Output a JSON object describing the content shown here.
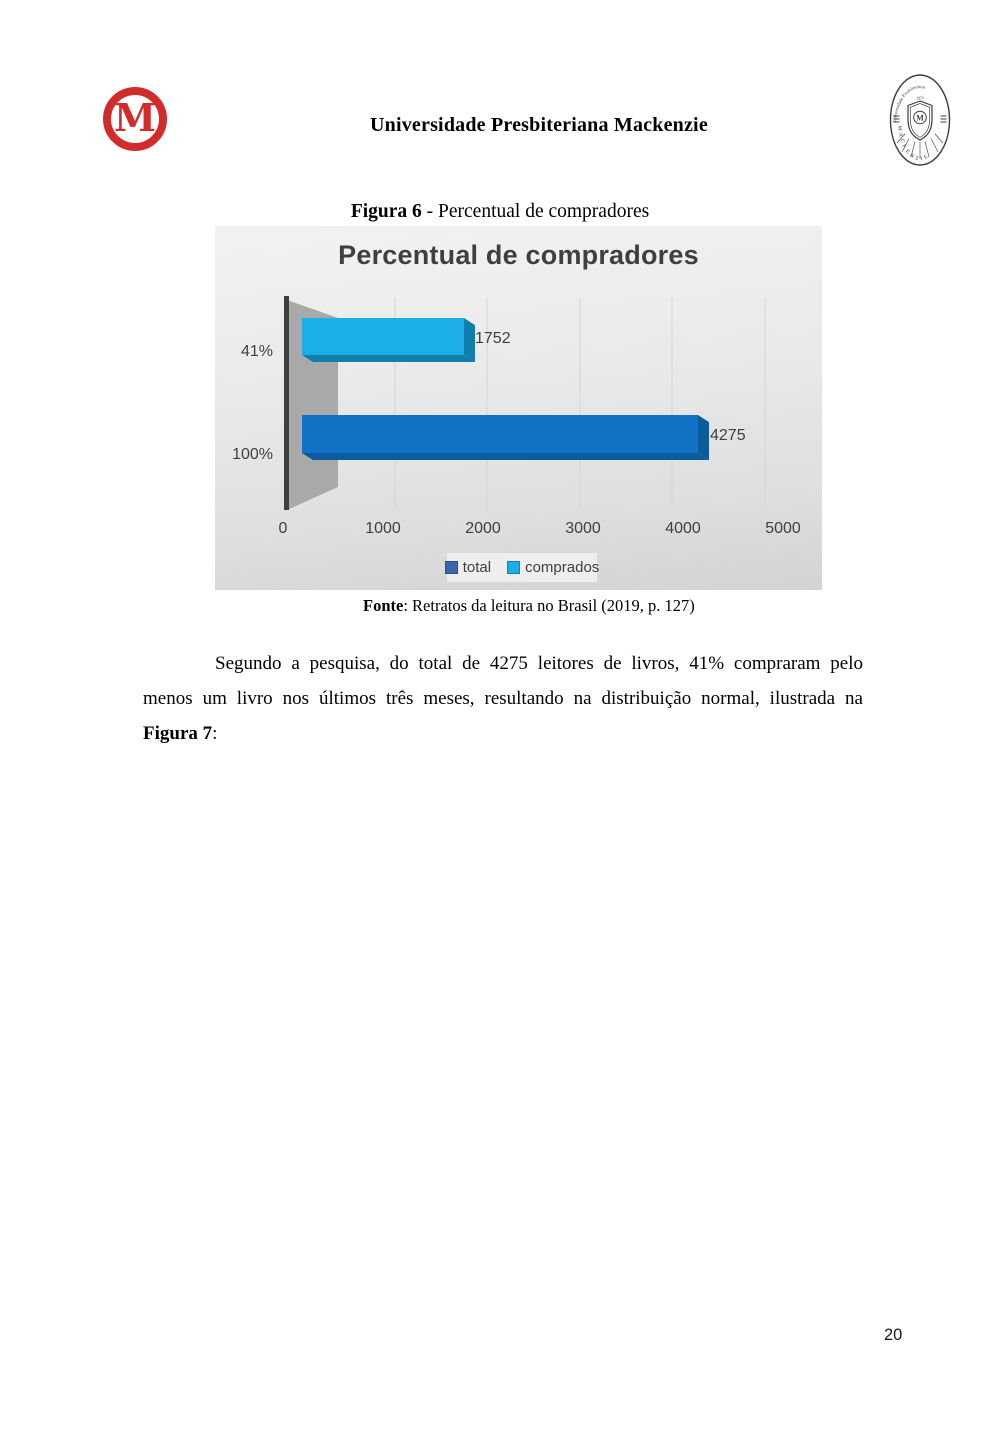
{
  "page": {
    "number": "20",
    "background": "#ffffff"
  },
  "header": {
    "title": "Universidade Presbiteriana Mackenzie",
    "logo": {
      "letter": "M",
      "color": "#d22b2c"
    },
    "seal": {
      "top_text": "Universidade Presbiteriana",
      "bottom_text": "MACKENZIE",
      "year": "1870",
      "center_letter": "M"
    }
  },
  "figure": {
    "caption_label": "Figura 6",
    "caption_text": " - Percentual de compradores",
    "source_label": "Fonte",
    "source_text": ": Retratos da leitura no Brasil (2019, p. 127)"
  },
  "chart_data": {
    "type": "bar",
    "orientation": "horizontal",
    "style": "3d",
    "title": "Percentual de compradores",
    "categories": [
      "41%",
      "100%"
    ],
    "series": [
      {
        "name": "comprados",
        "category": "41%",
        "value": 1752,
        "color": "#1caee8",
        "color_dark": "#0f7fae"
      },
      {
        "name": "total",
        "category": "100%",
        "value": 4275,
        "color": "#1273c6",
        "color_dark": "#0b5c9c"
      }
    ],
    "data_labels": [
      "1752",
      "4275"
    ],
    "x_ticks": [
      "0",
      "1000",
      "2000",
      "3000",
      "4000",
      "5000"
    ],
    "xlim": [
      0,
      5000
    ],
    "legend": [
      {
        "label": "total",
        "color": "#3b66ae"
      },
      {
        "label": "comprados",
        "color": "#1caee8"
      }
    ],
    "legend_position": "bottom",
    "gridlines": true
  },
  "body": {
    "line1": "Segundo a pesquisa, do total de 4275 leitores de livros, 41% compraram pelo",
    "line2": "menos um livro nos últimos três meses, resultando na distribuição normal, ilustrada na",
    "figure_ref": "Figura 7",
    "figure_ref_suffix": ":"
  }
}
